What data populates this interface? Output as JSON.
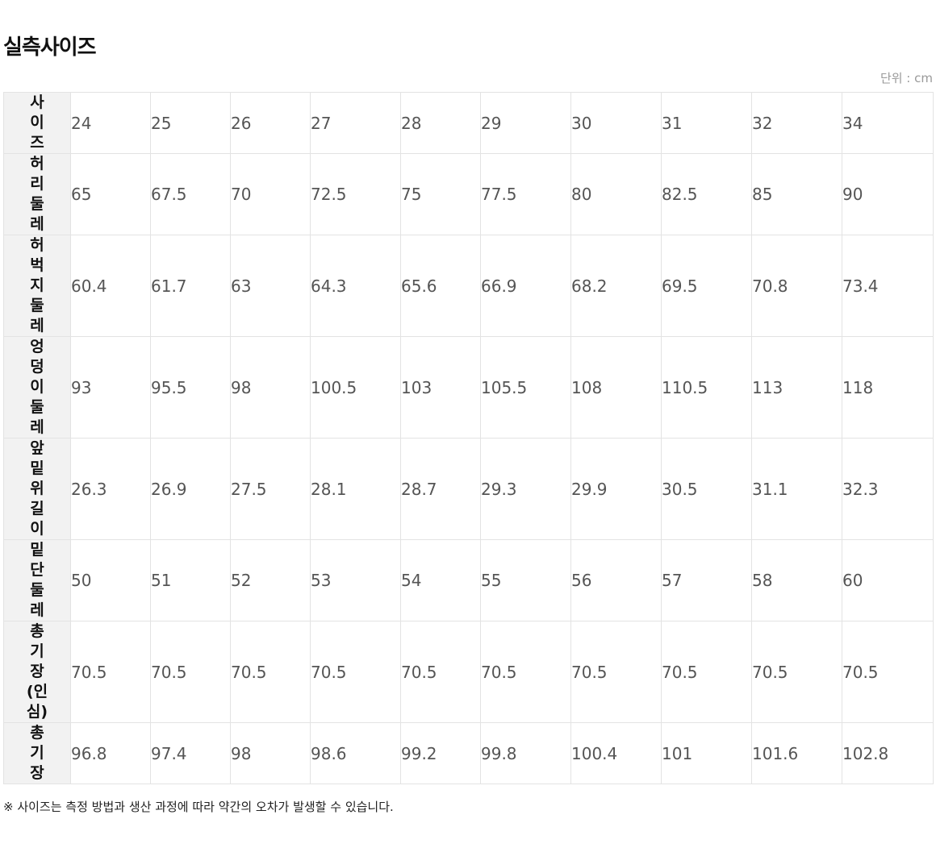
{
  "title": "실측사이즈",
  "unit_label": "단위 : cm",
  "rows": [
    {
      "label": "사이즈",
      "values": [
        "24",
        "25",
        "26",
        "27",
        "28",
        "29",
        "30",
        "31",
        "32",
        "34"
      ]
    },
    {
      "label": "허리둘레",
      "values": [
        "65",
        "67.5",
        "70",
        "72.5",
        "75",
        "77.5",
        "80",
        "82.5",
        "85",
        "90"
      ]
    },
    {
      "label": "허벅지둘레",
      "values": [
        "60.4",
        "61.7",
        "63",
        "64.3",
        "65.6",
        "66.9",
        "68.2",
        "69.5",
        "70.8",
        "73.4"
      ]
    },
    {
      "label": "엉덩이둘레",
      "values": [
        "93",
        "95.5",
        "98",
        "100.5",
        "103",
        "105.5",
        "108",
        "110.5",
        "113",
        "118"
      ]
    },
    {
      "label": "앞밑위길이",
      "values": [
        "26.3",
        "26.9",
        "27.5",
        "28.1",
        "28.7",
        "29.3",
        "29.9",
        "30.5",
        "31.1",
        "32.3"
      ]
    },
    {
      "label": "밑단둘레",
      "values": [
        "50",
        "51",
        "52",
        "53",
        "54",
        "55",
        "56",
        "57",
        "58",
        "60"
      ]
    },
    {
      "label": "총기장(인심)",
      "values": [
        "70.5",
        "70.5",
        "70.5",
        "70.5",
        "70.5",
        "70.5",
        "70.5",
        "70.5",
        "70.5",
        "70.5"
      ]
    },
    {
      "label": "총기장",
      "values": [
        "96.8",
        "97.4",
        "98",
        "98.6",
        "99.2",
        "99.8",
        "100.4",
        "101",
        "101.6",
        "102.8"
      ]
    }
  ],
  "note": "※ 사이즈는 측정 방법과 생산 과정에 따라 약간의 오차가 발생할 수 있습니다."
}
